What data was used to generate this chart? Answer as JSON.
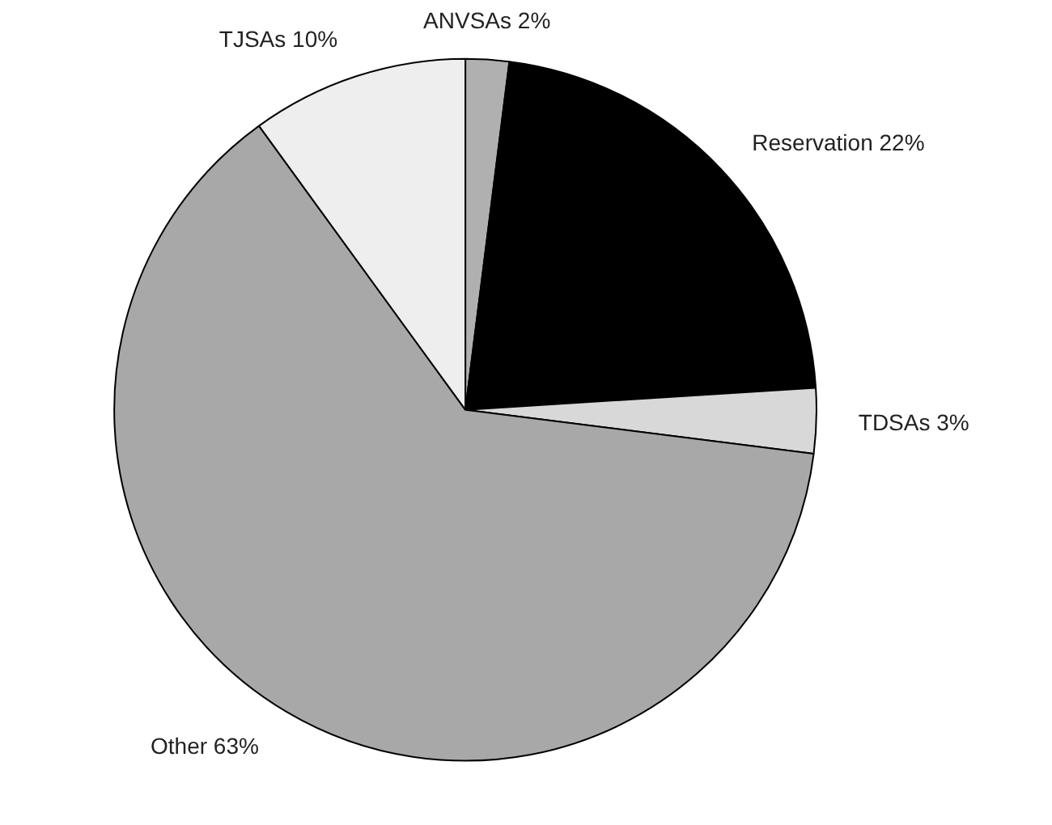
{
  "chart_data": {
    "type": "pie",
    "categories": [
      "ANVSAs",
      "Reservation",
      "TDSAs",
      "Other",
      "TJSAs"
    ],
    "values": [
      2,
      22,
      3,
      63,
      10
    ],
    "value_labels": [
      "2%",
      "22%",
      "3%",
      "63%",
      "10%"
    ],
    "colors": [
      "#b0b0b0",
      "#000000",
      "#d8d8d8",
      "#a8a8a8",
      "#eeeeee"
    ]
  }
}
